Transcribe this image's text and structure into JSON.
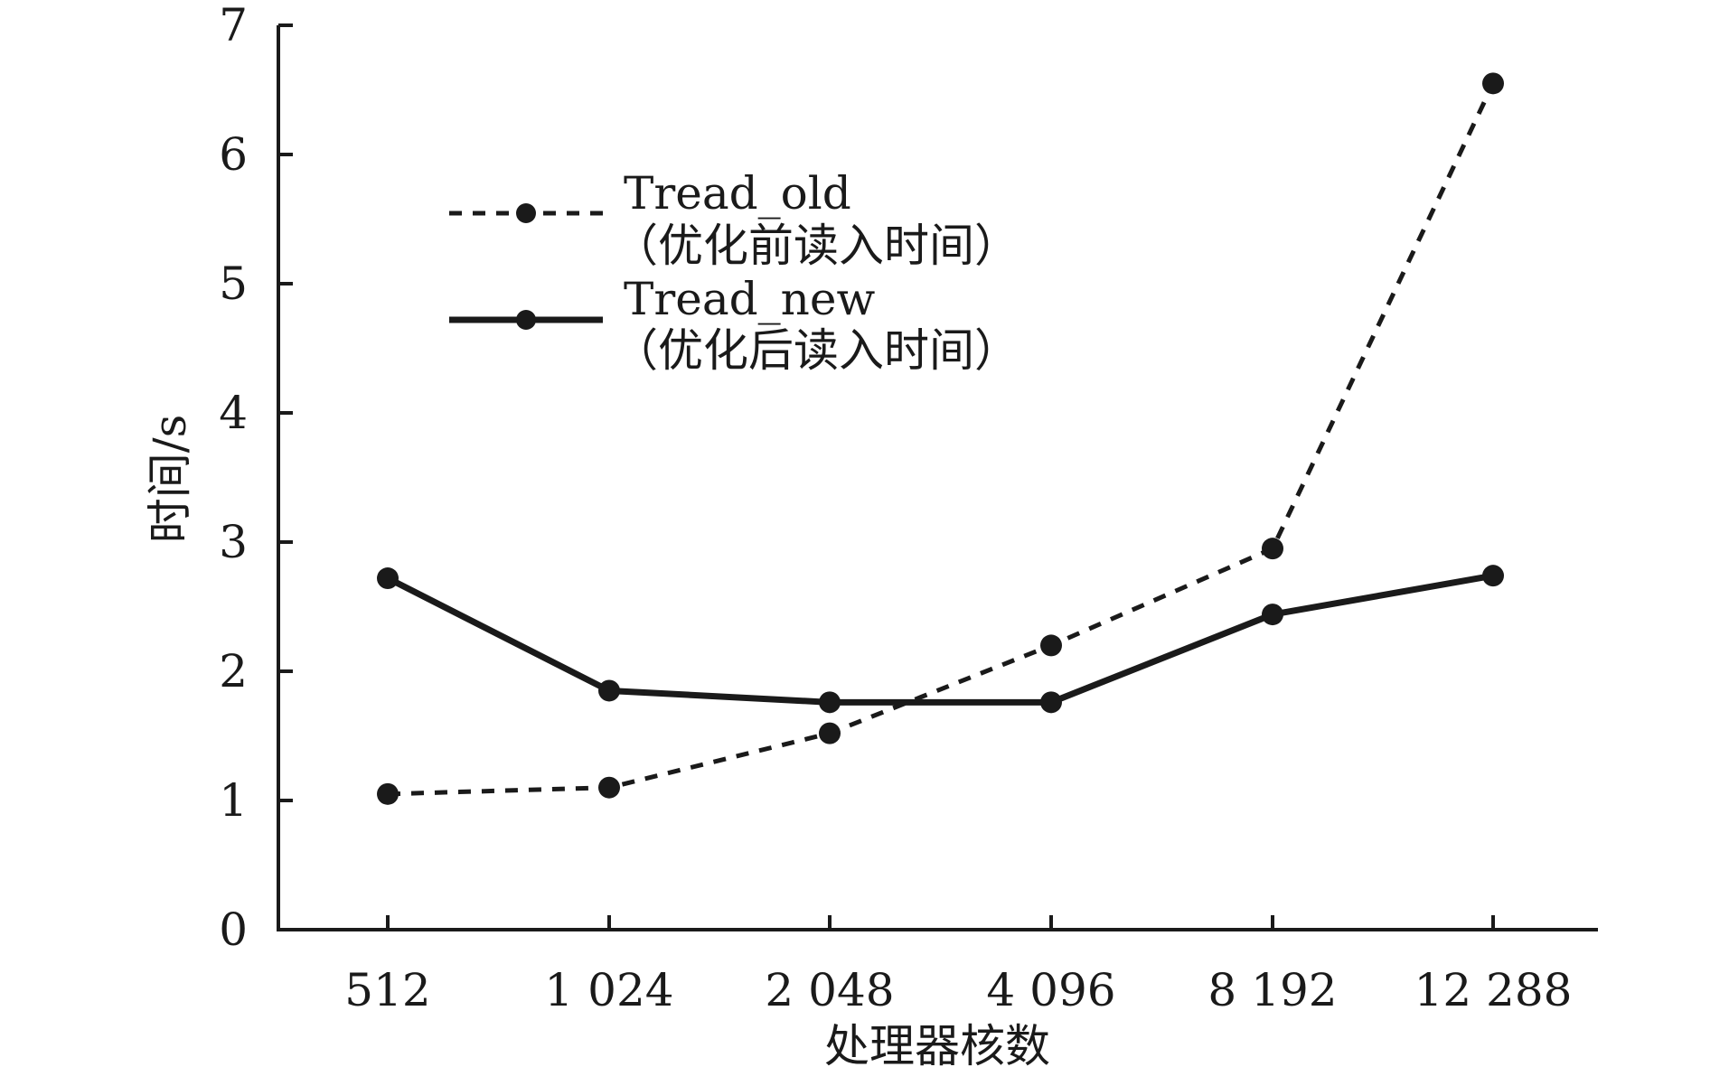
{
  "chart_data": {
    "type": "line",
    "categories": [
      "512",
      "1 024",
      "2 048",
      "4 096",
      "8 192",
      "12 288"
    ],
    "series": [
      {
        "name": "Tread_old",
        "name_note": "（优化前读入时间）",
        "values": [
          1.05,
          1.1,
          1.52,
          2.2,
          2.95,
          6.55
        ],
        "line_style": "dashed",
        "color": "#1a1a1a"
      },
      {
        "name": "Tread_new",
        "name_note": "（优化后读入时间）",
        "values": [
          2.72,
          1.85,
          1.76,
          1.76,
          2.44,
          2.74
        ],
        "line_style": "solid",
        "color": "#1a1a1a"
      }
    ],
    "xlabel": "处理器核数",
    "ylabel": "时间/s",
    "ylim": [
      0,
      7
    ],
    "yticks": [
      "0",
      "1",
      "2",
      "3",
      "4",
      "5",
      "6",
      "7"
    ],
    "grid": false,
    "legend_position": "upper-left"
  }
}
